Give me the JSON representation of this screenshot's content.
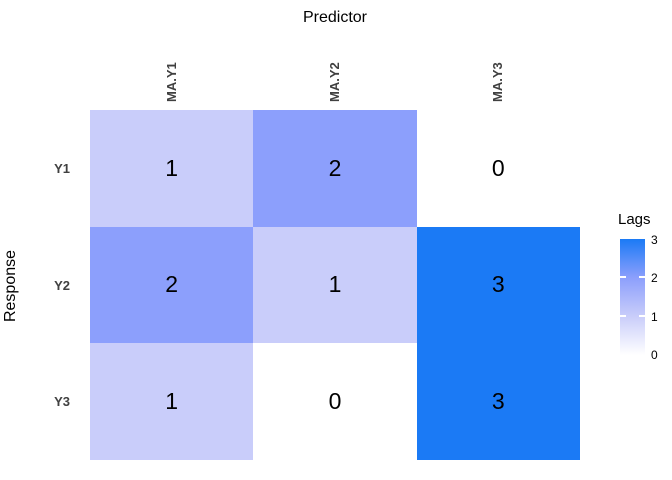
{
  "chart_data": {
    "type": "heatmap",
    "xlabel": "Predictor",
    "ylabel": "Response",
    "x": [
      "MA.Y1",
      "MA.Y2",
      "MA.Y3"
    ],
    "y": [
      "Y1",
      "Y2",
      "Y3"
    ],
    "values": [
      [
        1,
        2,
        0
      ],
      [
        2,
        1,
        3
      ],
      [
        1,
        0,
        3
      ]
    ],
    "legend": {
      "title": "Lags",
      "position": "right",
      "min": 0,
      "max": 3,
      "ticks": [
        "3",
        "2",
        "1",
        "0"
      ]
    },
    "color_scale": {
      "0": "#FFFFFF",
      "1": "#C9CDFA",
      "2": "#8C9FFC",
      "3": "#1B7AF5"
    },
    "grid": false
  }
}
